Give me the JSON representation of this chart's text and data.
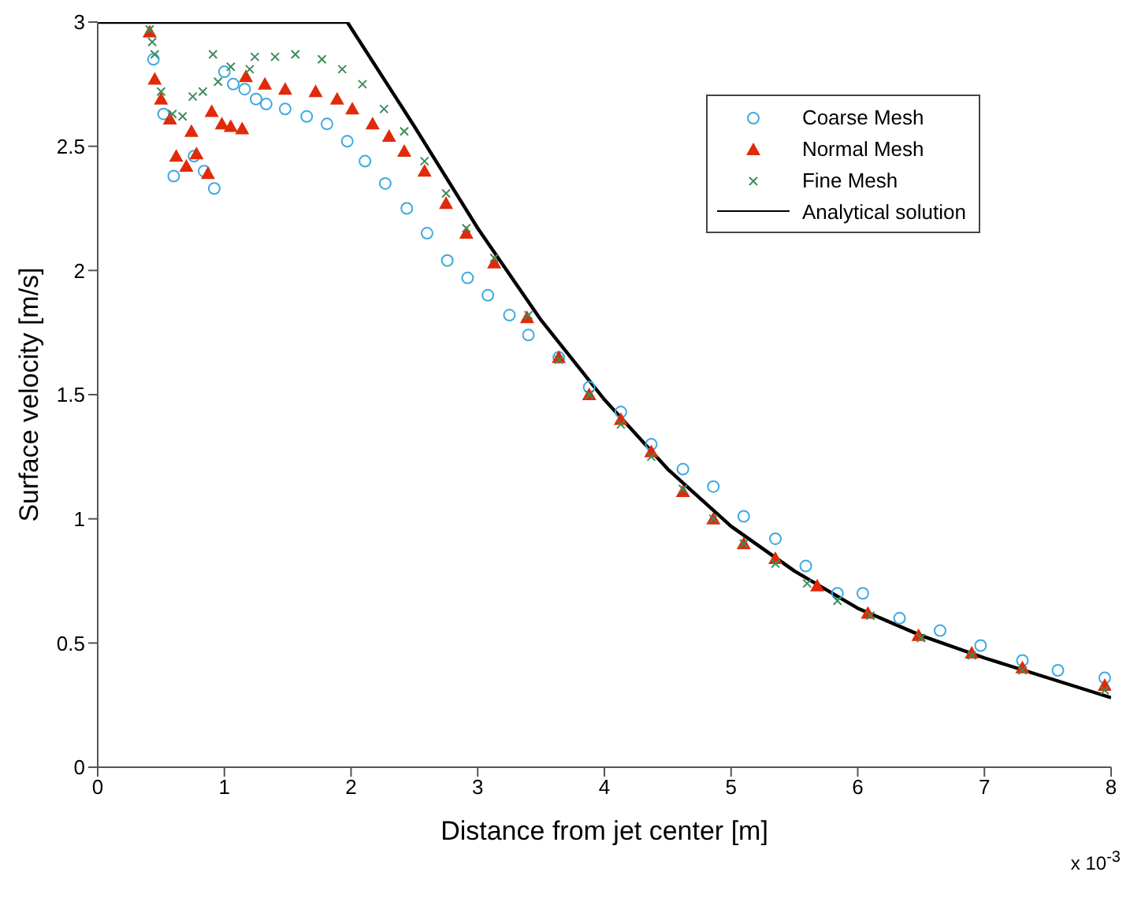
{
  "chart_data": {
    "type": "scatter",
    "xlabel": "Distance from jet center [m]",
    "ylabel": "Surface velocity [m/s]",
    "annotations": [
      "x 10$^{-3}$"
    ],
    "xlim": [
      0,
      8
    ],
    "xticks": [
      0,
      1,
      2,
      3,
      4,
      5,
      6,
      7,
      8
    ],
    "ylim": [
      0,
      3
    ],
    "yticks": [
      0,
      0.5,
      1,
      1.5,
      2,
      2.5,
      3
    ],
    "grid": false,
    "legend": "top right",
    "series": [
      {
        "name": "Coarse Mesh",
        "marker": "circle",
        "color": "#3fa9e0",
        "x": [
          0.44,
          0.52,
          0.6,
          0.76,
          0.84,
          0.92,
          1.0,
          1.07,
          1.16,
          1.25,
          1.33,
          1.48,
          1.65,
          1.81,
          1.97,
          2.11,
          2.27,
          2.44,
          2.6,
          2.76,
          2.92,
          3.08,
          3.25,
          3.4,
          3.64,
          3.88,
          4.13,
          4.37,
          4.62,
          4.86,
          5.1,
          5.35,
          5.59,
          5.84,
          6.04,
          6.33,
          6.65,
          6.97,
          7.3,
          7.58,
          7.95
        ],
        "values": [
          2.85,
          2.63,
          2.38,
          2.46,
          2.4,
          2.33,
          2.8,
          2.75,
          2.73,
          2.69,
          2.67,
          2.65,
          2.62,
          2.59,
          2.52,
          2.44,
          2.35,
          2.25,
          2.15,
          2.04,
          1.97,
          1.9,
          1.82,
          1.74,
          1.65,
          1.53,
          1.43,
          1.3,
          1.2,
          1.13,
          1.01,
          0.92,
          0.81,
          0.7,
          0.7,
          0.6,
          0.55,
          0.49,
          0.43,
          0.39,
          0.36
        ]
      },
      {
        "name": "Normal Mesh",
        "marker": "triangle",
        "color": "#e02a0a",
        "x": [
          0.41,
          0.45,
          0.5,
          0.57,
          0.62,
          0.7,
          0.74,
          0.78,
          0.87,
          0.9,
          0.98,
          1.05,
          1.14,
          1.17,
          1.32,
          1.48,
          1.72,
          1.89,
          2.01,
          2.17,
          2.3,
          2.42,
          2.58,
          2.75,
          2.91,
          3.13,
          3.39,
          3.64,
          3.88,
          4.13,
          4.37,
          4.62,
          4.86,
          5.1,
          5.35,
          5.68,
          6.08,
          6.48,
          6.9,
          7.3,
          7.95
        ],
        "values": [
          2.96,
          2.77,
          2.69,
          2.61,
          2.46,
          2.42,
          2.56,
          2.47,
          2.39,
          2.64,
          2.59,
          2.58,
          2.57,
          2.78,
          2.75,
          2.73,
          2.72,
          2.69,
          2.65,
          2.59,
          2.54,
          2.48,
          2.4,
          2.27,
          2.15,
          2.03,
          1.81,
          1.65,
          1.5,
          1.4,
          1.27,
          1.11,
          1.0,
          0.9,
          0.84,
          0.73,
          0.62,
          0.53,
          0.46,
          0.4,
          0.33
        ]
      },
      {
        "name": "Fine Mesh",
        "marker": "cross",
        "color": "#3d8c5a",
        "x": [
          0.41,
          0.43,
          0.45,
          0.5,
          0.59,
          0.67,
          0.75,
          0.83,
          0.91,
          0.95,
          1.05,
          1.2,
          1.24,
          1.4,
          1.56,
          1.77,
          1.93,
          2.09,
          2.26,
          2.42,
          2.58,
          2.75,
          2.91,
          3.13,
          3.4,
          3.64,
          3.88,
          4.13,
          4.37,
          4.62,
          4.86,
          5.1,
          5.35,
          5.6,
          5.84,
          6.1,
          6.5,
          6.9,
          7.3,
          7.95
        ],
        "values": [
          2.97,
          2.92,
          2.87,
          2.72,
          2.63,
          2.62,
          2.7,
          2.72,
          2.87,
          2.76,
          2.82,
          2.81,
          2.86,
          2.86,
          2.87,
          2.85,
          2.81,
          2.75,
          2.65,
          2.56,
          2.44,
          2.31,
          2.17,
          2.05,
          1.82,
          1.64,
          1.5,
          1.38,
          1.25,
          1.12,
          1.0,
          0.9,
          0.82,
          0.74,
          0.67,
          0.61,
          0.52,
          0.45,
          0.39,
          0.31
        ]
      },
      {
        "name": "Analytical solution",
        "type": "line",
        "color": "#000000",
        "x": [
          0,
          1.97,
          2.5,
          3,
          3.5,
          4,
          4.5,
          5,
          5.5,
          6,
          6.5,
          7,
          7.5,
          8
        ],
        "values": [
          3,
          3,
          2.58,
          2.17,
          1.8,
          1.48,
          1.2,
          0.97,
          0.79,
          0.64,
          0.53,
          0.44,
          0.36,
          0.28
        ]
      }
    ]
  }
}
